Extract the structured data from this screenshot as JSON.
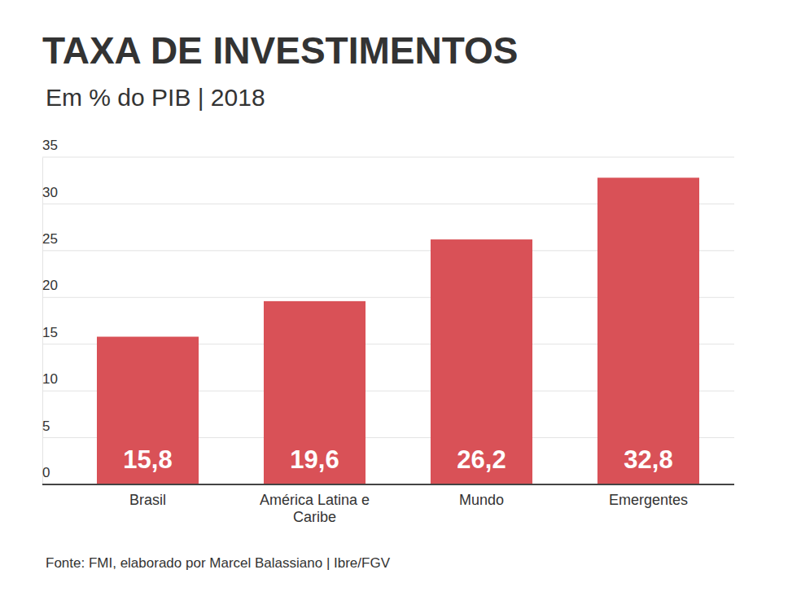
{
  "chart_data": {
    "type": "bar",
    "title": "TAXA DE INVESTIMENTOS",
    "subtitle": "Em % do PIB | 2018",
    "categories": [
      "Brasil",
      "América Latina e Caribe",
      "Mundo",
      "Emergentes"
    ],
    "values": [
      15.8,
      19.6,
      26.2,
      32.8
    ],
    "value_labels": [
      "15,8",
      "19,6",
      "26,2",
      "32,8"
    ],
    "color": "#d95157",
    "ylim": [
      0,
      35
    ],
    "yticks": [
      0,
      5,
      10,
      15,
      20,
      25,
      30,
      35
    ],
    "grid": true,
    "data_labels": true,
    "source": "Fonte: FMI, elaborado por Marcel Balassiano | Ibre/FGV"
  }
}
